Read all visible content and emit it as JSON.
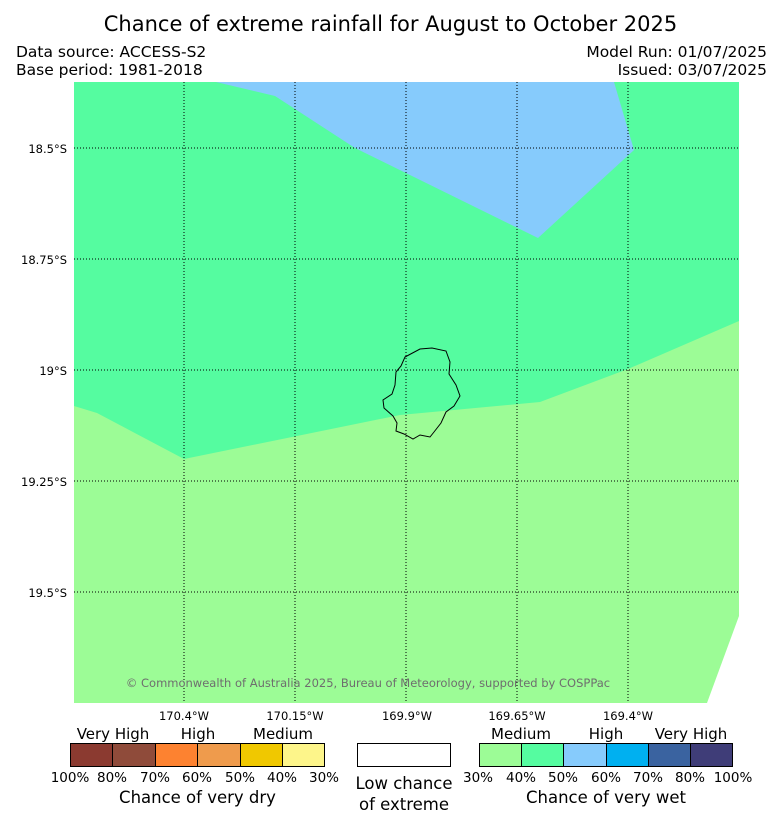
{
  "header": {
    "title": "Chance of extreme rainfall for August to October 2025",
    "data_source": "Data source: ACCESS-S2",
    "base_period": "Base period: 1981-2018",
    "model_run": "Model Run: 01/07/2025",
    "issued": "Issued: 03/07/2025"
  },
  "map": {
    "latitude_labels": [
      "18.5°S",
      "18.75°S",
      "19°S",
      "19.25°S",
      "19.5°S"
    ],
    "longitude_labels": [
      "170.4°W",
      "170.15°W",
      "169.9°W",
      "169.65°W",
      "169.4°W"
    ],
    "copyright": "© Commonwealth of Australia 2025, Bureau of Meteorology, supported by COSPPac",
    "region_colors": {
      "wet_medium_30_40": "#9cfc96",
      "wet_medium_40_50": "#55fca0",
      "wet_high_50_60": "#86cbfc",
      "coastline": "#000000",
      "gridline": "#000000"
    }
  },
  "legend": {
    "dry": {
      "headers": [
        "Very High",
        "High",
        "Medium"
      ],
      "colors": [
        "#8b3a30",
        "#8f4b3a",
        "#fd8230",
        "#ef9b4c",
        "#f0c800",
        "#fdf58a"
      ],
      "ticks": [
        "100%",
        "80%",
        "70%",
        "60%",
        "50%",
        "40%",
        "30%"
      ],
      "caption": "Chance of very dry"
    },
    "neutral": {
      "color": "#ffffff",
      "caption_line1": "Low chance",
      "caption_line2": "of extreme"
    },
    "wet": {
      "headers": [
        "Medium",
        "High",
        "Very High"
      ],
      "colors": [
        "#9cfc96",
        "#55fca0",
        "#86cbfc",
        "#00b0f0",
        "#3a63a0",
        "#3f3d78"
      ],
      "ticks": [
        "30%",
        "40%",
        "50%",
        "60%",
        "70%",
        "80%",
        "100%"
      ],
      "caption": "Chance of very wet"
    }
  }
}
